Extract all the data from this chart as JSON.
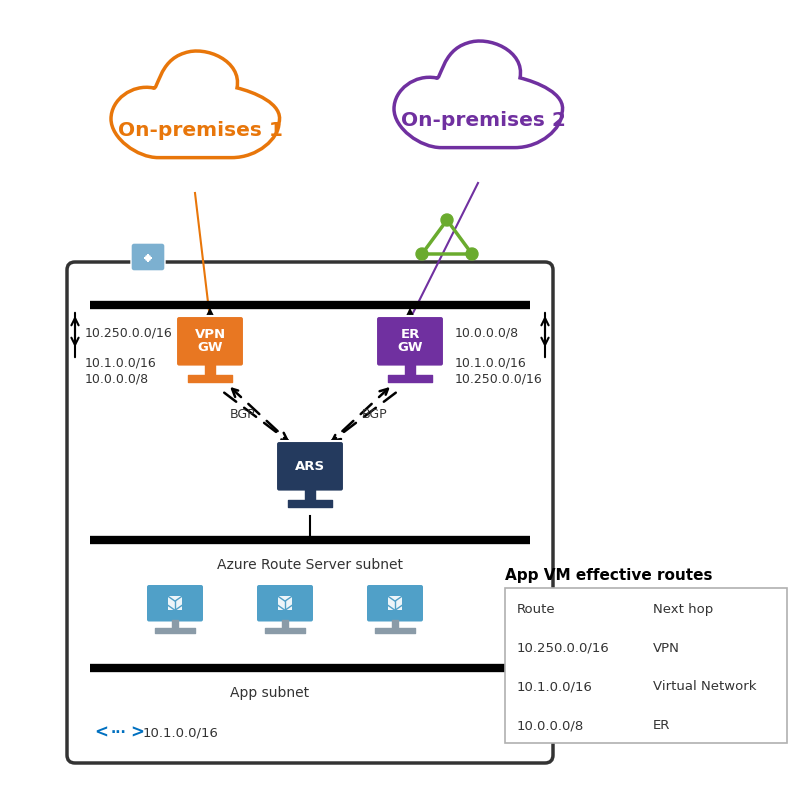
{
  "bg_color": "#ffffff",
  "cloud1_color": "#E8760A",
  "cloud2_color": "#7030A0",
  "cloud1_label": "On-premises 1",
  "cloud2_label": "On-premises 2",
  "vpn_color": "#E87722",
  "er_color": "#7030A0",
  "ars_color": "#243A5E",
  "vm_screen_color": "#50A0C8",
  "vm_stand_color": "#8A9BA8",
  "arrow_color": "#333333",
  "left_routes_down": "10.250.0.0/16",
  "left_routes_up": "10.1.0.0/16\n10.0.0.0/8",
  "right_routes_down": "10.0.0.0/8",
  "right_routes_up": "10.1.0.0/16\n10.250.0.0/16",
  "table_title": "App VM effective routes",
  "table_rows": [
    [
      "Route",
      "Next hop"
    ],
    [
      "10.250.0.0/16",
      "VPN"
    ],
    [
      "10.1.0.0/16",
      "Virtual Network"
    ],
    [
      "10.0.0.0/8",
      "ER"
    ]
  ],
  "subnet_label1": "Azure Route Server subnet",
  "subnet_label2": "App subnet",
  "vnet_label": "10.1.0.0/16",
  "bgp_label": "BGP",
  "lock_color": "#7CB0D0",
  "triangle_color": "#6AAB2E",
  "route_icon_color": "#0070C0"
}
